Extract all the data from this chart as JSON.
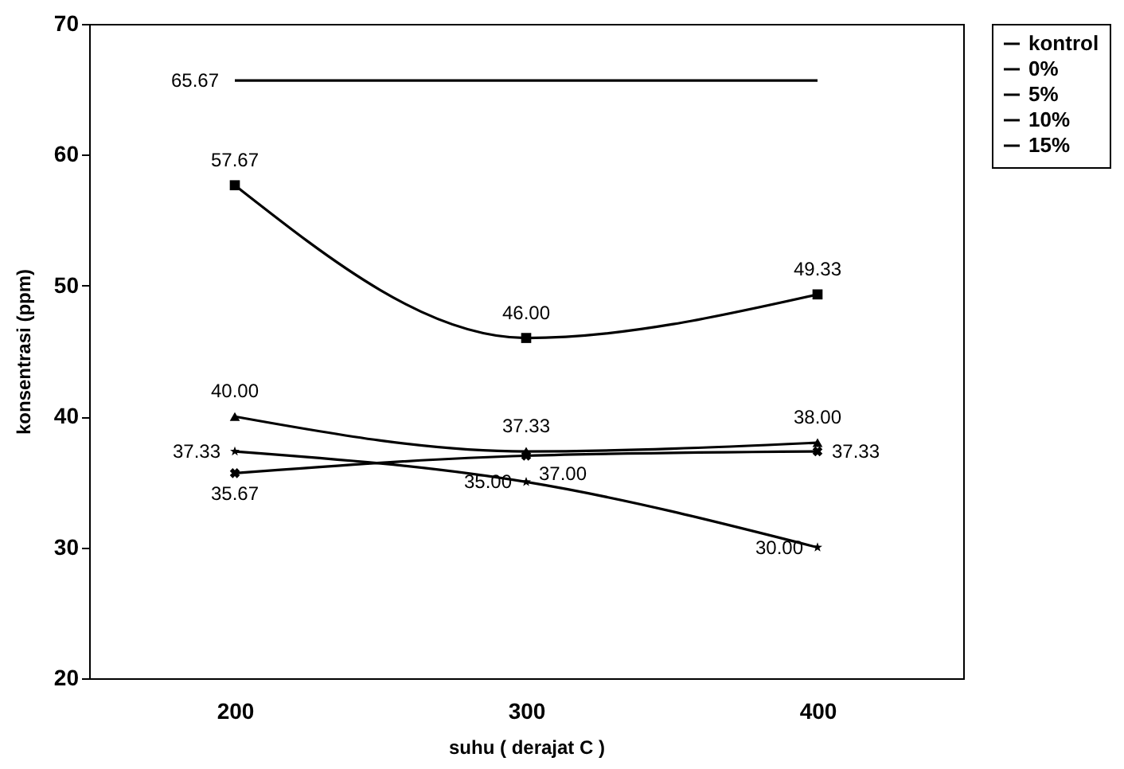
{
  "chart_data": {
    "type": "line",
    "xlabel": "suhu ( derajat C )",
    "ylabel": "konsentrasi (ppm)",
    "categories": [
      "200",
      "300",
      "400"
    ],
    "series": [
      {
        "name": "kontrol",
        "color": "#000000",
        "marker": "none",
        "values": [
          65.67,
          65.67,
          65.67
        ],
        "value_labels": [
          "65.67",
          null,
          null
        ]
      },
      {
        "name": "0%",
        "color": "#000000",
        "marker": "square",
        "values": [
          57.67,
          46.0,
          49.33
        ],
        "value_labels": [
          "57.67",
          "46.00",
          "49.33"
        ]
      },
      {
        "name": "5%",
        "color": "#000000",
        "marker": "triangle",
        "values": [
          40.0,
          37.33,
          38.0
        ],
        "value_labels": [
          "40.00",
          "37.33",
          "38.00"
        ]
      },
      {
        "name": "10%",
        "color": "#000000",
        "marker": "cross",
        "values": [
          35.67,
          37.0,
          37.33
        ],
        "value_labels": [
          "35.67",
          "37.00",
          "37.33"
        ]
      },
      {
        "name": "15%",
        "color": "#000000",
        "marker": "star",
        "values": [
          37.33,
          35.0,
          30.0
        ],
        "value_labels": [
          "37.33",
          "35.00",
          "30.00"
        ]
      }
    ],
    "ylim": [
      20,
      70
    ],
    "yticks": [
      20,
      30,
      40,
      50,
      60,
      70
    ],
    "grid": false,
    "legend": "right",
    "line_style": "solid"
  }
}
